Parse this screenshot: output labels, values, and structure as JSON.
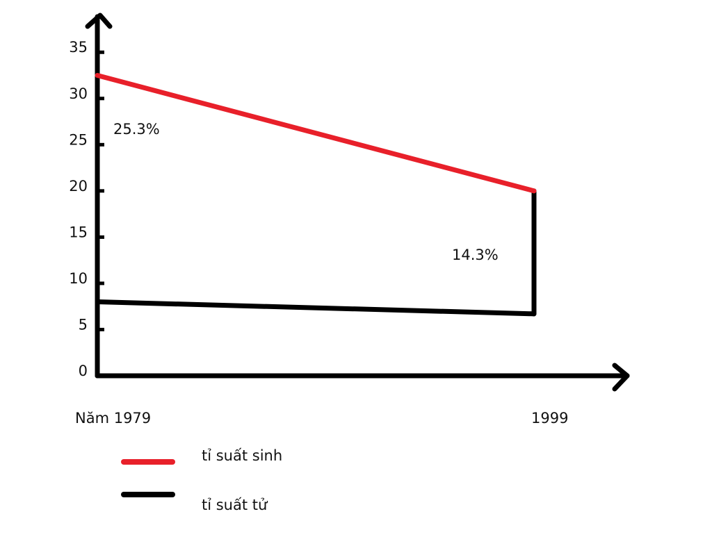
{
  "chart_data": {
    "type": "line",
    "categories": [
      "Năm 1979",
      "1999"
    ],
    "series": [
      {
        "name": "tỉ suất sinh",
        "color": "#e8202a",
        "values": [
          32.5,
          20
        ]
      },
      {
        "name": "tỉ suất tử",
        "color": "#000000",
        "values": [
          8,
          6.7
        ]
      }
    ],
    "annotations": [
      "25.3%",
      "14.3%"
    ],
    "ylim": [
      0,
      39
    ],
    "yticks": [
      0,
      5,
      10,
      15,
      20,
      25,
      30,
      35
    ]
  }
}
